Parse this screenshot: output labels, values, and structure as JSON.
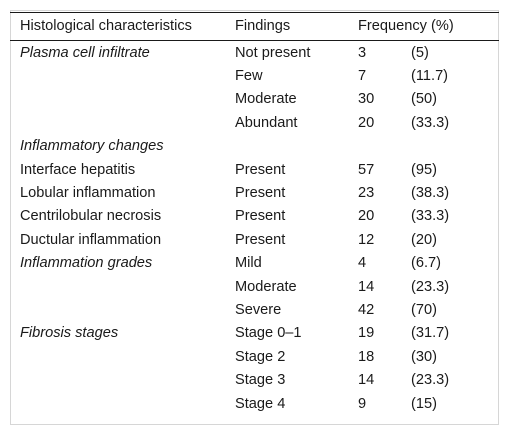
{
  "headers": {
    "col1": "Histological characteristics",
    "col2": "Findings",
    "col3": "Frequency (%)"
  },
  "rows": [
    {
      "category": "Plasma cell infiltrate",
      "category_italic": true,
      "finding": "Not present",
      "count": "3",
      "pct": "(5)"
    },
    {
      "category": "",
      "finding": "Few",
      "count": "7",
      "pct": "(11.7)"
    },
    {
      "category": "",
      "finding": "Moderate",
      "count": "30",
      "pct": "(50)"
    },
    {
      "category": "",
      "finding": "Abundant",
      "count": "20",
      "pct": "(33.3)"
    },
    {
      "category": "Inflammatory changes",
      "category_italic": true,
      "finding": "",
      "count": "",
      "pct": ""
    },
    {
      "category": "Interface hepatitis",
      "finding": "Present",
      "count": "57",
      "pct": "(95)"
    },
    {
      "category": "Lobular inflammation",
      "finding": "Present",
      "count": "23",
      "pct": "(38.3)"
    },
    {
      "category": "Centrilobular necrosis",
      "finding": "Present",
      "count": "20",
      "pct": "(33.3)"
    },
    {
      "category": "Ductular inflammation",
      "finding": "Present",
      "count": "12",
      "pct": "(20)"
    },
    {
      "category": "Inflammation grades",
      "category_italic": true,
      "finding": "Mild",
      "count": "4",
      "pct": "(6.7)"
    },
    {
      "category": "",
      "finding": "Moderate",
      "count": "14",
      "pct": "(23.3)"
    },
    {
      "category": "",
      "finding": "Severe",
      "count": "42",
      "pct": "(70)"
    },
    {
      "category": "Fibrosis stages",
      "category_italic": true,
      "finding": "Stage 0–1",
      "count": "19",
      "pct": "(31.7)"
    },
    {
      "category": "",
      "finding": "Stage 2",
      "count": "18",
      "pct": "(30)"
    },
    {
      "category": "",
      "finding": "Stage 3",
      "count": "14",
      "pct": "(23.3)"
    },
    {
      "category": "",
      "finding": "Stage 4",
      "count": "9",
      "pct": "(15)"
    }
  ]
}
